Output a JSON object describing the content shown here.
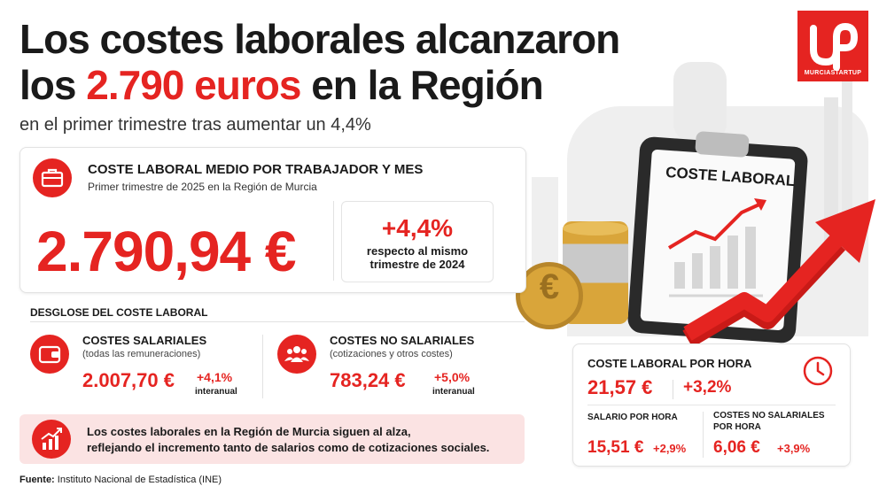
{
  "headline": {
    "line1": "Los costes laborales alcanzaron",
    "line2_pre": "los ",
    "line2_highlight": "2.790 euros",
    "line2_post": " en la Región",
    "subtitle": "en el primer trimestre tras aumentar un 4,4%"
  },
  "logo": {
    "brand": "MURCIASTARTUP"
  },
  "clipboard": {
    "title": "COSTE LABORAL"
  },
  "main_card": {
    "title": "COSTE LABORAL MEDIO POR TRABAJADOR Y MES",
    "subtitle": "Primer trimestre de 2025 en la Región de Murcia",
    "value": "2.790,94 €",
    "change": "+4,4%",
    "change_note_1": "respecto al mismo",
    "change_note_2": "trimestre de 2024"
  },
  "breakdown": {
    "title": "DESGLOSE DEL COSTE LABORAL",
    "salariales": {
      "label": "COSTES SALARIALES",
      "note": "(todas las remuneraciones)",
      "value": "2.007,70 €",
      "change": "+4,1%",
      "change_note": "interanual"
    },
    "no_salariales": {
      "label": "COSTES NO SALARIALES",
      "note": "(cotizaciones y otros costes)",
      "value": "783,24 €",
      "change": "+5,0%",
      "change_note": "interanual"
    }
  },
  "hourly": {
    "title": "COSTE LABORAL POR HORA",
    "value": "21,57 €",
    "change": "+3,2%",
    "salario": {
      "label": "SALARIO POR HORA",
      "value": "15,51 €",
      "change": "+2,9%"
    },
    "no_salariales": {
      "label_1": "COSTES NO SALARIALES",
      "label_2": "POR HORA",
      "value": "6,06 €",
      "change": "+3,9%"
    }
  },
  "banner": {
    "line1": "Los costes laborales en la Región de Murcia siguen al alza,",
    "line2": "reflejando el incremento tanto de salarios como de cotizaciones sociales."
  },
  "source": {
    "label": "Fuente:",
    "text": " Instituto Nacional de Estadística (INE)"
  },
  "colors": {
    "accent": "#e52421",
    "text": "#1a1a1a",
    "banner_bg": "#fbe3e3",
    "gold": "#d9a53a",
    "silver": "#c9c9c9"
  }
}
